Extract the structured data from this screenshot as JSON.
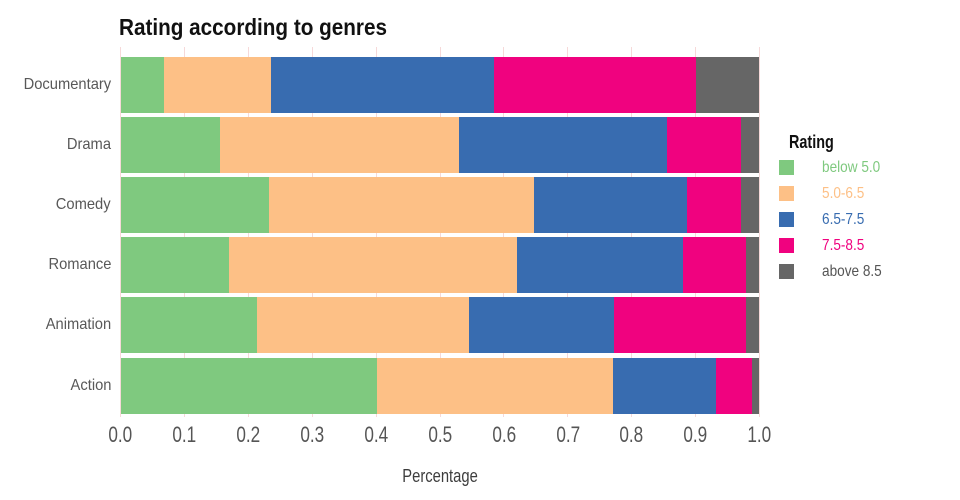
{
  "chart_data": {
    "type": "bar",
    "variant": "horizontal-stacked",
    "title": "Rating according to genres",
    "xlabel": "Percentage",
    "ylabel": "",
    "xlim": [
      0.0,
      1.0
    ],
    "grid": true,
    "categories": [
      "Documentary",
      "Drama",
      "Comedy",
      "Romance",
      "Animation",
      "Action"
    ],
    "x_ticks": [
      0.0,
      0.1,
      0.2,
      0.3,
      0.4,
      0.5,
      0.6,
      0.7,
      0.8,
      0.9,
      1.0
    ],
    "x_tick_labels": [
      "0.0",
      "0.1",
      "0.2",
      "0.3",
      "0.4",
      "0.5",
      "0.6",
      "0.7",
      "0.8",
      "0.9",
      "1.0"
    ],
    "legend": {
      "title": "Rating",
      "position": "right"
    },
    "series": [
      {
        "name": "below 5.0",
        "color": "#7FC97F",
        "label_color": "#7FC97F",
        "values": [
          0.068,
          0.155,
          0.233,
          0.17,
          0.214,
          0.401
        ]
      },
      {
        "name": "5.0-6.5",
        "color": "#FDC086",
        "label_color": "#FDC086",
        "values": [
          0.168,
          0.374,
          0.414,
          0.451,
          0.331,
          0.37
        ]
      },
      {
        "name": "6.5-7.5",
        "color": "#386CB0",
        "label_color": "#386CB0",
        "values": [
          0.348,
          0.326,
          0.239,
          0.26,
          0.227,
          0.161
        ]
      },
      {
        "name": "7.5-8.5",
        "color": "#F0027F",
        "label_color": "#F0027F",
        "values": [
          0.316,
          0.116,
          0.085,
          0.098,
          0.207,
          0.056
        ]
      },
      {
        "name": "above 8.5",
        "color": "#666666",
        "label_color": "#555555",
        "values": [
          0.1,
          0.029,
          0.029,
          0.021,
          0.021,
          0.012
        ]
      }
    ],
    "axis_text_color": "#585858",
    "gridline_color": "#f6d9d9",
    "background_color": "#ffffff"
  }
}
